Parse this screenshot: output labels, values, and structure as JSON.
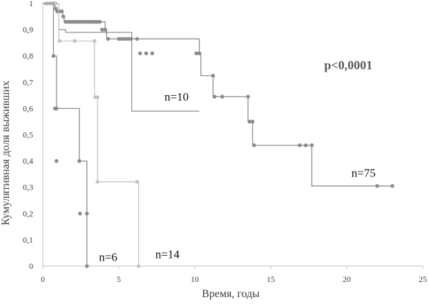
{
  "chart_data": {
    "type": "line",
    "subtype": "kaplan-meier step",
    "xlabel": "Время, годы",
    "ylabel": "Кумулятивная доля выживших",
    "xlim": [
      0,
      25
    ],
    "ylim": [
      0,
      1
    ],
    "x_ticks": [
      "0",
      "5",
      "10",
      "15",
      "20",
      "25"
    ],
    "y_ticks": [
      "0",
      "0,1",
      "0,2",
      "0,3",
      "0,4",
      "0,5",
      "0,6",
      "0,7",
      "0,8",
      "0,9",
      "1"
    ],
    "grid": false,
    "legend": "none",
    "annotations": [
      {
        "id": "p-value",
        "text": "p<0,0001",
        "x": 20.1,
        "y": 0.75,
        "bold": true
      },
      {
        "id": "label-n10",
        "text": "n=10",
        "x": 8.8,
        "y": 0.63
      },
      {
        "id": "label-n75",
        "text": "n=75",
        "x": 21.1,
        "y": 0.34
      },
      {
        "id": "label-n6",
        "text": "n=6",
        "x": 4.3,
        "y": 0.02
      },
      {
        "id": "label-n14",
        "text": "n=14",
        "x": 8.2,
        "y": 0.03
      }
    ],
    "series": [
      {
        "id": "n75",
        "color": "#8c8c8c",
        "width": 1.3,
        "steps": [
          [
            0,
            1
          ],
          [
            0.8,
            0.98
          ],
          [
            0.9,
            0.97
          ],
          [
            1.3,
            0.95
          ],
          [
            1.4,
            0.93
          ],
          [
            4.1,
            0.9
          ],
          [
            4.2,
            0.865
          ],
          [
            10.3,
            0.81
          ],
          [
            10.4,
            0.725
          ],
          [
            11.2,
            0.645
          ],
          [
            13.5,
            0.55
          ],
          [
            13.8,
            0.46
          ],
          [
            17.7,
            0.305
          ],
          [
            23.0,
            0.305
          ]
        ],
        "markers": [
          [
            0.25,
            1
          ],
          [
            0.45,
            1
          ],
          [
            0.6,
            1
          ],
          [
            0.75,
            1
          ],
          [
            0.85,
            0.98
          ],
          [
            0.95,
            0.97
          ],
          [
            1.1,
            0.97
          ],
          [
            1.25,
            0.97
          ],
          [
            1.35,
            0.95
          ],
          [
            1.5,
            0.93
          ],
          [
            1.65,
            0.93
          ],
          [
            1.8,
            0.93
          ],
          [
            1.95,
            0.93
          ],
          [
            2.1,
            0.93
          ],
          [
            2.25,
            0.93
          ],
          [
            2.4,
            0.93
          ],
          [
            2.55,
            0.93
          ],
          [
            2.7,
            0.93
          ],
          [
            2.85,
            0.93
          ],
          [
            3.0,
            0.93
          ],
          [
            3.15,
            0.93
          ],
          [
            3.3,
            0.93
          ],
          [
            3.45,
            0.93
          ],
          [
            3.6,
            0.93
          ],
          [
            3.75,
            0.93
          ],
          [
            3.9,
            0.9
          ],
          [
            4.1,
            0.9
          ],
          [
            4.3,
            0.865
          ],
          [
            5.0,
            0.865
          ],
          [
            5.2,
            0.865
          ],
          [
            5.4,
            0.865
          ],
          [
            5.6,
            0.865
          ],
          [
            5.8,
            0.865
          ],
          [
            6.2,
            0.865
          ],
          [
            6.4,
            0.81
          ],
          [
            6.8,
            0.81
          ],
          [
            7.2,
            0.81
          ],
          [
            10.1,
            0.81
          ],
          [
            10.3,
            0.81
          ],
          [
            11.2,
            0.725
          ],
          [
            11.3,
            0.645
          ],
          [
            11.8,
            0.645
          ],
          [
            13.5,
            0.645
          ],
          [
            13.6,
            0.55
          ],
          [
            13.8,
            0.55
          ],
          [
            13.9,
            0.46
          ],
          [
            16.9,
            0.46
          ],
          [
            17.3,
            0.46
          ],
          [
            17.7,
            0.46
          ],
          [
            22.0,
            0.305
          ],
          [
            23.0,
            0.305
          ]
        ]
      },
      {
        "id": "n10",
        "color": "#7f7f7f",
        "width": 1.1,
        "steps": [
          [
            0,
            1
          ],
          [
            1.0,
            1
          ],
          [
            1.05,
            0.9
          ],
          [
            1.5,
            0.89
          ],
          [
            5.85,
            0.59
          ],
          [
            10.3,
            0.59
          ]
        ],
        "markers": []
      },
      {
        "id": "n14",
        "color": "#c4c4c4",
        "width": 1.3,
        "steps": [
          [
            0,
            1
          ],
          [
            1.0,
            1
          ],
          [
            1.05,
            0.857
          ],
          [
            3.4,
            0.643
          ],
          [
            3.6,
            0.321
          ],
          [
            6.3,
            0
          ],
          [
            6.3,
            0
          ]
        ],
        "markers": [
          [
            0.2,
            1
          ],
          [
            0.4,
            1
          ],
          [
            0.6,
            1
          ],
          [
            0.85,
            1
          ],
          [
            1.1,
            0.857
          ],
          [
            2.1,
            0.857
          ],
          [
            3.4,
            0.857
          ],
          [
            3.45,
            0.643
          ],
          [
            3.6,
            0.643
          ],
          [
            3.6,
            0.321
          ],
          [
            6.2,
            0.321
          ],
          [
            6.3,
            0
          ]
        ]
      },
      {
        "id": "n6",
        "color": "#8c8c8c",
        "width": 1.3,
        "steps": [
          [
            0,
            1
          ],
          [
            0.7,
            0.8
          ],
          [
            0.9,
            0.6
          ],
          [
            2.4,
            0.4
          ],
          [
            2.9,
            0.2
          ],
          [
            2.9,
            0
          ]
        ],
        "markers": [
          [
            0.7,
            0.8
          ],
          [
            0.8,
            0.6
          ],
          [
            0.9,
            0.6
          ],
          [
            0.9,
            0.4
          ],
          [
            2.4,
            0.4
          ],
          [
            2.45,
            0.2
          ],
          [
            2.9,
            0.2
          ],
          [
            2.9,
            0
          ]
        ]
      }
    ]
  }
}
